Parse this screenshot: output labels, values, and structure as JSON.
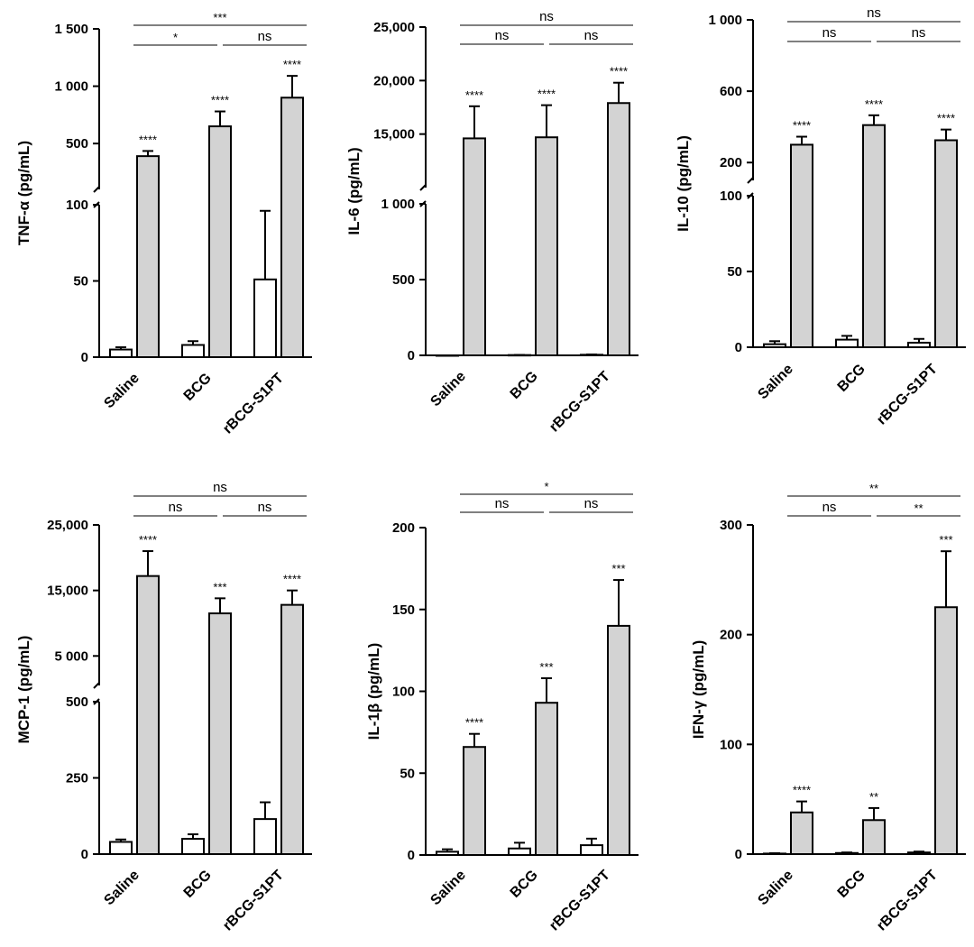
{
  "colors": {
    "treated": "#d3d3d3",
    "control": "#ffffff",
    "stroke": "#000000"
  },
  "chart_data": [
    {
      "id": "tnf",
      "type": "bar",
      "ylabel": "TNF-α (pg/mL)",
      "categories": [
        "Saline",
        "BCG",
        "rBCG-S1PT"
      ],
      "series": [
        {
          "name": "control",
          "values": [
            5,
            8,
            51
          ],
          "errors": [
            1.5,
            2.5,
            45
          ]
        },
        {
          "name": "treated",
          "values": [
            390,
            650,
            900
          ],
          "errors": [
            45,
            130,
            190
          ]
        }
      ],
      "segments": [
        {
          "min": 0,
          "max": 100,
          "ticks": [
            0,
            50,
            100
          ],
          "tick_labels": [
            "0",
            "50",
            "100"
          ]
        },
        {
          "min": 100,
          "max": 1500,
          "ticks": [
            500,
            1000,
            1500
          ],
          "tick_labels": [
            "500",
            "1 000",
            "1 500"
          ]
        }
      ],
      "bar_annotations": [
        "****",
        "****",
        "****"
      ],
      "comparisons": [
        {
          "from": 0,
          "to": 1,
          "label": "*",
          "level": 0
        },
        {
          "from": 1,
          "to": 2,
          "label": "ns",
          "level": 0
        },
        {
          "from": 0,
          "to": 2,
          "label": "***",
          "level": 1
        }
      ]
    },
    {
      "id": "il6",
      "type": "bar",
      "ylabel": "IL-6 (pg/mL)",
      "categories": [
        "Saline",
        "BCG",
        "rBCG-S1PT"
      ],
      "series": [
        {
          "name": "control",
          "values": [
            0,
            2,
            4
          ],
          "errors": [
            0,
            1,
            2
          ]
        },
        {
          "name": "treated",
          "values": [
            14600,
            14700,
            17900
          ],
          "errors": [
            3000,
            3000,
            1900
          ]
        }
      ],
      "segments": [
        {
          "min": 0,
          "max": 1000,
          "ticks": [
            0,
            500,
            1000
          ],
          "tick_labels": [
            "0",
            "500",
            "1 000"
          ]
        },
        {
          "min": 10000,
          "max": 25000,
          "ticks": [
            15000,
            20000,
            25000
          ],
          "tick_labels": [
            "15,000",
            "20,000",
            "25,000"
          ]
        }
      ],
      "bar_annotations": [
        "****",
        "****",
        "****"
      ],
      "comparisons": [
        {
          "from": 0,
          "to": 1,
          "label": "ns",
          "level": 0
        },
        {
          "from": 1,
          "to": 2,
          "label": "ns",
          "level": 0
        },
        {
          "from": 0,
          "to": 2,
          "label": "ns",
          "level": 1
        }
      ]
    },
    {
      "id": "il10",
      "type": "bar",
      "ylabel": "IL-10 (pg/mL)",
      "categories": [
        "Saline",
        "BCG",
        "rBCG-S1PT"
      ],
      "series": [
        {
          "name": "control",
          "values": [
            2,
            5,
            3
          ],
          "errors": [
            2,
            2.5,
            2.5
          ]
        },
        {
          "name": "treated",
          "values": [
            300,
            410,
            325
          ],
          "errors": [
            45,
            55,
            60
          ]
        }
      ],
      "segments": [
        {
          "min": 0,
          "max": 100,
          "ticks": [
            0,
            50,
            100
          ],
          "tick_labels": [
            "0",
            "50",
            "100"
          ]
        },
        {
          "min": 100,
          "max": 1000,
          "ticks": [
            200,
            600,
            1000
          ],
          "tick_labels": [
            "200",
            "600",
            "1 000"
          ]
        }
      ],
      "bar_annotations": [
        "****",
        "****",
        "****"
      ],
      "comparisons": [
        {
          "from": 0,
          "to": 1,
          "label": "ns",
          "level": 0
        },
        {
          "from": 1,
          "to": 2,
          "label": "ns",
          "level": 0
        },
        {
          "from": 0,
          "to": 2,
          "label": "ns",
          "level": 1
        }
      ]
    },
    {
      "id": "mcp1",
      "type": "bar",
      "ylabel": "MCP-1 (pg/mL)",
      "categories": [
        "Saline",
        "BCG",
        "rBCG-S1PT"
      ],
      "series": [
        {
          "name": "control",
          "values": [
            40,
            50,
            115
          ],
          "errors": [
            8,
            15,
            55
          ]
        },
        {
          "name": "treated",
          "values": [
            17200,
            11500,
            12800
          ],
          "errors": [
            3800,
            2300,
            2200
          ]
        }
      ],
      "segments": [
        {
          "min": 0,
          "max": 500,
          "ticks": [
            0,
            250,
            500
          ],
          "tick_labels": [
            "0",
            "250",
            "500"
          ]
        },
        {
          "min": 500,
          "max": 25000,
          "ticks": [
            5000,
            15000,
            25000
          ],
          "tick_labels": [
            "5 000",
            "15,000",
            "25,000"
          ]
        }
      ],
      "bar_annotations": [
        "****",
        "***",
        "****"
      ],
      "comparisons": [
        {
          "from": 0,
          "to": 1,
          "label": "ns",
          "level": 0
        },
        {
          "from": 1,
          "to": 2,
          "label": "ns",
          "level": 0
        },
        {
          "from": 0,
          "to": 2,
          "label": "ns",
          "level": 1
        }
      ]
    },
    {
      "id": "il1b",
      "type": "bar",
      "ylabel": "IL-1β (pg/mL)",
      "categories": [
        "Saline",
        "BCG",
        "rBCG-S1PT"
      ],
      "series": [
        {
          "name": "control",
          "values": [
            2,
            4,
            6
          ],
          "errors": [
            1.5,
            3.5,
            4
          ]
        },
        {
          "name": "treated",
          "values": [
            66,
            93,
            140
          ],
          "errors": [
            8,
            15,
            28
          ]
        }
      ],
      "segments": [
        {
          "min": 0,
          "max": 200,
          "ticks": [
            0,
            50,
            100,
            150,
            200
          ],
          "tick_labels": [
            "0",
            "50",
            "100",
            "150",
            "200"
          ]
        }
      ],
      "bar_annotations": [
        "****",
        "***",
        "***"
      ],
      "comparisons": [
        {
          "from": 0,
          "to": 1,
          "label": "ns",
          "level": 0
        },
        {
          "from": 1,
          "to": 2,
          "label": "ns",
          "level": 0
        },
        {
          "from": 0,
          "to": 2,
          "label": "*",
          "level": 1
        }
      ]
    },
    {
      "id": "ifng",
      "type": "bar",
      "ylabel": "IFN-γ (pg/mL)",
      "categories": [
        "Saline",
        "BCG",
        "rBCG-S1PT"
      ],
      "series": [
        {
          "name": "control",
          "values": [
            0.5,
            1,
            1.5
          ],
          "errors": [
            0.3,
            0.5,
            0.8
          ]
        },
        {
          "name": "treated",
          "values": [
            38,
            31,
            225
          ],
          "errors": [
            10,
            11,
            51
          ]
        }
      ],
      "segments": [
        {
          "min": 0,
          "max": 300,
          "ticks": [
            0,
            100,
            200,
            300
          ],
          "tick_labels": [
            "0",
            "100",
            "200",
            "300"
          ]
        }
      ],
      "bar_annotations": [
        "****",
        "**",
        "***"
      ],
      "comparisons": [
        {
          "from": 0,
          "to": 1,
          "label": "ns",
          "level": 0
        },
        {
          "from": 1,
          "to": 2,
          "label": "**",
          "level": 0
        },
        {
          "from": 0,
          "to": 2,
          "label": "**",
          "level": 1
        }
      ]
    }
  ]
}
